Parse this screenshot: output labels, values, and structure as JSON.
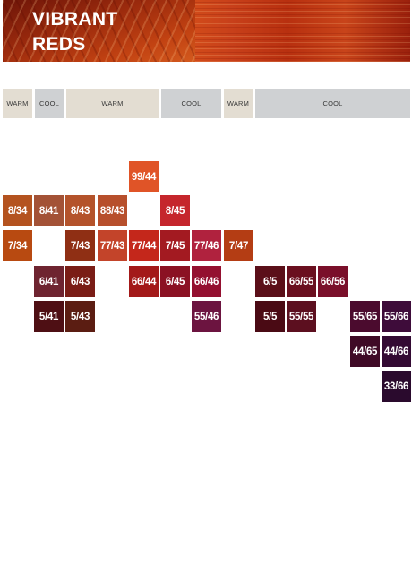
{
  "header": {
    "title_line1": "VIBRANT",
    "title_line2": "REDS"
  },
  "tone_labels": [
    "WARM",
    "COOL",
    "WARM",
    "COOL",
    "WARM",
    "COOL"
  ],
  "shades": [
    {
      "label": "99/44",
      "color": "#e05427"
    },
    {
      "label": "8/34",
      "color": "#b4531f"
    },
    {
      "label": "8/41",
      "color": "#a35236"
    },
    {
      "label": "8/43",
      "color": "#b4532b"
    },
    {
      "label": "88/43",
      "color": "#b74f2c"
    },
    {
      "label": "8/45",
      "color": "#c5262c"
    },
    {
      "label": "7/34",
      "color": "#b84a11"
    },
    {
      "label": "7/43",
      "color": "#8f2f14"
    },
    {
      "label": "77/43",
      "color": "#c3442a"
    },
    {
      "label": "77/44",
      "color": "#c4271b"
    },
    {
      "label": "7/45",
      "color": "#a31a21"
    },
    {
      "label": "77/46",
      "color": "#b0223e"
    },
    {
      "label": "7/47",
      "color": "#b43d14"
    },
    {
      "label": "6/41",
      "color": "#6e2430"
    },
    {
      "label": "6/43",
      "color": "#7a1d16"
    },
    {
      "label": "66/44",
      "color": "#a31919"
    },
    {
      "label": "6/45",
      "color": "#8b1123"
    },
    {
      "label": "66/46",
      "color": "#941030"
    },
    {
      "label": "6/5",
      "color": "#5b0f19"
    },
    {
      "label": "66/55",
      "color": "#6a0f1f"
    },
    {
      "label": "66/56",
      "color": "#7a0f2a"
    },
    {
      "label": "5/41",
      "color": "#4e0f14"
    },
    {
      "label": "5/43",
      "color": "#5b1d12"
    },
    {
      "label": "55/46",
      "color": "#6c1440"
    },
    {
      "label": "5/5",
      "color": "#4a0a14"
    },
    {
      "label": "55/55",
      "color": "#5c0f1f"
    },
    {
      "label": "55/65",
      "color": "#4b0b2e"
    },
    {
      "label": "55/66",
      "color": "#3e0c3a"
    },
    {
      "label": "44/65",
      "color": "#3f0a26"
    },
    {
      "label": "44/66",
      "color": "#330a33"
    },
    {
      "label": "33/66",
      "color": "#2a0a2d"
    }
  ]
}
